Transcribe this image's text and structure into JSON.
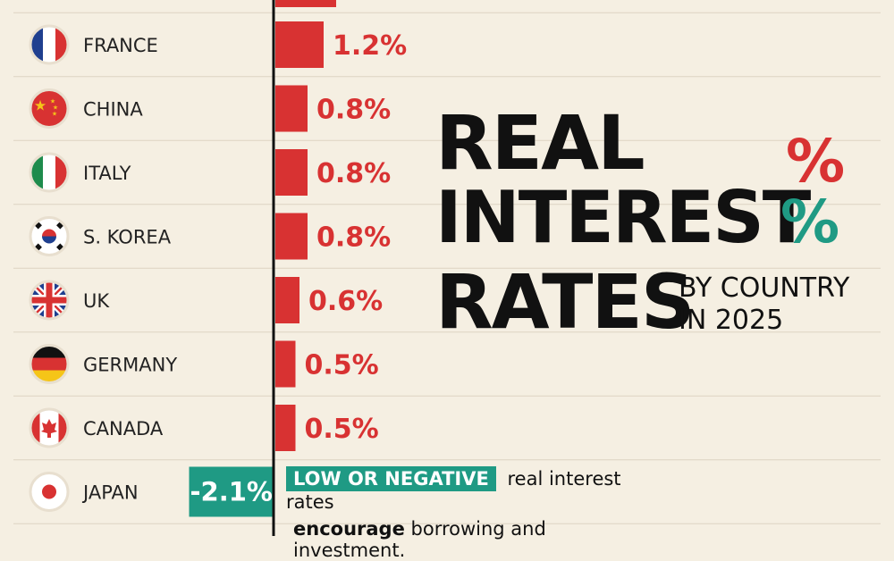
{
  "chart_data": {
    "type": "bar",
    "orientation": "horizontal",
    "title": "REAL INTEREST RATES",
    "subtitle": [
      "BY COUNTRY",
      "IN 2025"
    ],
    "categories": [
      "FRANCE",
      "CHINA",
      "ITALY",
      "S. KOREA",
      "UK",
      "GERMANY",
      "CANADA",
      "JAPAN"
    ],
    "values": [
      1.2,
      0.8,
      0.8,
      0.8,
      0.6,
      0.5,
      0.5,
      -2.1
    ],
    "value_labels": [
      "1.2%",
      "0.8%",
      "0.8%",
      "0.8%",
      "0.6%",
      "0.5%",
      "0.5%",
      "-2.1%"
    ],
    "unit": "%",
    "partial_bar_top": true,
    "grid": true,
    "xlabel": "",
    "ylabel": ""
  },
  "flags": [
    "france",
    "china",
    "italy",
    "south-korea",
    "uk",
    "germany",
    "canada",
    "japan"
  ],
  "colors": {
    "positive": "#d83232",
    "negative": "#1f9a84",
    "background": "#f5efe2",
    "text": "#111111"
  },
  "title_lines": [
    "REAL",
    "INTEREST",
    "RATES"
  ],
  "percent_glyph": "%",
  "note": {
    "badge": "LOW OR NEGATIVE",
    "line1": "real interest rates",
    "line2_strong": "encourage",
    "line2_rest": "borrowing and investment."
  }
}
